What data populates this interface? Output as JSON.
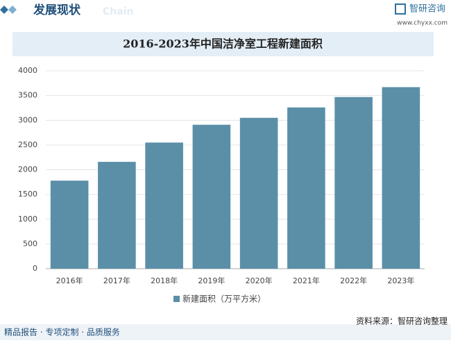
{
  "header": {
    "title": "发展现状",
    "subtitle": "Chain",
    "brand": "智研咨询",
    "url": "www.chyxx.com"
  },
  "chart_data": {
    "type": "bar",
    "title": "2016-2023年中国洁净室工程新建面积",
    "categories": [
      "2016年",
      "2017年",
      "2018年",
      "2019年",
      "2020年",
      "2021年",
      "2022年",
      "2023年"
    ],
    "series": [
      {
        "name": "新建面积（万平方米）",
        "color": "#5b8fa8",
        "values": [
          1780,
          2160,
          2550,
          2910,
          3050,
          3260,
          3470,
          3670
        ]
      }
    ],
    "ylim": [
      0,
      4000
    ],
    "yticks": [
      0,
      500,
      1000,
      1500,
      2000,
      2500,
      3000,
      3500,
      4000
    ],
    "grid": true,
    "legend": "bottom"
  },
  "footer": {
    "slogan": "精品报告 · 专项定制 · 品质服务",
    "source": "资料来源：智研咨询整理"
  }
}
